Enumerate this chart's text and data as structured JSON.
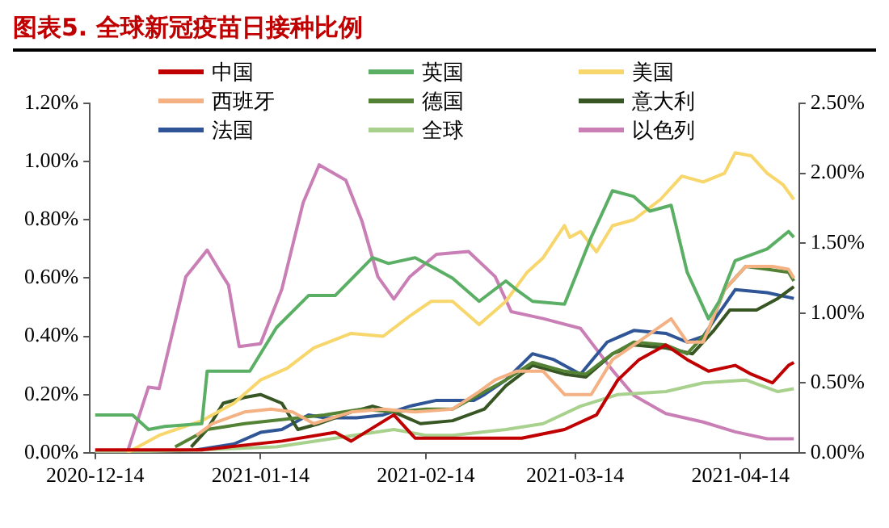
{
  "chart_data": {
    "type": "line",
    "title": "图表5.  全球新冠疫苗日接种比例",
    "legend": "top",
    "grid": false,
    "xlim": [
      "2020-12-13",
      "2021-04-25"
    ],
    "xticks": [
      "2020-12-14",
      "2021-01-14",
      "2021-02-14",
      "2021-03-14",
      "2021-04-14"
    ],
    "ylim": [
      0,
      1.2
    ],
    "yticks": [
      {
        "value": 0,
        "label": "0.00%"
      },
      {
        "value": 0.2,
        "label": "0.20%"
      },
      {
        "value": 0.4,
        "label": "0.40%"
      },
      {
        "value": 0.6,
        "label": "0.60%"
      },
      {
        "value": 0.8,
        "label": "0.80%"
      },
      {
        "value": 1.0,
        "label": "1.00%"
      },
      {
        "value": 1.2,
        "label": "1.20%"
      }
    ],
    "y2lim": [
      0,
      2.5
    ],
    "y2ticks": [
      {
        "value": 0,
        "label": "0.00%"
      },
      {
        "value": 0.5,
        "label": "0.50%"
      },
      {
        "value": 1.0,
        "label": "1.00%"
      },
      {
        "value": 1.5,
        "label": "1.50%"
      },
      {
        "value": 2.0,
        "label": "2.00%"
      },
      {
        "value": 2.5,
        "label": "2.50%"
      }
    ],
    "series": [
      {
        "name": "中国",
        "color": "#c00000",
        "x": [
          "2020-12-14",
          "2021-01-03",
          "2021-01-18",
          "2021-01-28",
          "2021-01-31",
          "2021-02-08",
          "2021-02-12",
          "2021-03-04",
          "2021-03-12",
          "2021-03-18",
          "2021-03-22",
          "2021-03-26",
          "2021-03-31",
          "2021-04-04",
          "2021-04-08",
          "2021-04-13",
          "2021-04-16",
          "2021-04-20",
          "2021-04-23",
          "2021-04-24"
        ],
        "values": [
          0.01,
          0.01,
          0.04,
          0.07,
          0.04,
          0.13,
          0.05,
          0.05,
          0.08,
          0.13,
          0.25,
          0.32,
          0.37,
          0.32,
          0.28,
          0.3,
          0.27,
          0.24,
          0.3,
          0.31
        ]
      },
      {
        "name": "英国",
        "color": "#5aaf65",
        "x": [
          "2020-12-14",
          "2020-12-21",
          "2020-12-24",
          "2020-12-27",
          "2021-01-03",
          "2021-01-04",
          "2021-01-12",
          "2021-01-17",
          "2021-01-23",
          "2021-01-28",
          "2021-02-04",
          "2021-02-07",
          "2021-02-12",
          "2021-02-16",
          "2021-02-19",
          "2021-02-24",
          "2021-03-01",
          "2021-03-03",
          "2021-03-06",
          "2021-03-12",
          "2021-03-17",
          "2021-03-21",
          "2021-03-25",
          "2021-03-28",
          "2021-04-01",
          "2021-04-04",
          "2021-04-08",
          "2021-04-10",
          "2021-04-13",
          "2021-04-19",
          "2021-04-23",
          "2021-04-24"
        ],
        "values": [
          0.13,
          0.13,
          0.08,
          0.09,
          0.1,
          0.28,
          0.28,
          0.43,
          0.54,
          0.54,
          0.67,
          0.65,
          0.67,
          0.63,
          0.6,
          0.52,
          0.59,
          0.56,
          0.52,
          0.51,
          0.74,
          0.9,
          0.88,
          0.83,
          0.85,
          0.62,
          0.46,
          0.52,
          0.66,
          0.7,
          0.76,
          0.74
        ]
      },
      {
        "name": "美国",
        "color": "#f7d66b",
        "x": [
          "2020-12-20",
          "2020-12-26",
          "2021-01-03",
          "2021-01-09",
          "2021-01-14",
          "2021-01-19",
          "2021-01-24",
          "2021-01-31",
          "2021-02-06",
          "2021-02-11",
          "2021-02-15",
          "2021-02-19",
          "2021-02-24",
          "2021-03-01",
          "2021-03-05",
          "2021-03-08",
          "2021-03-12",
          "2021-03-13",
          "2021-03-15",
          "2021-03-18",
          "2021-03-21",
          "2021-03-25",
          "2021-03-30",
          "2021-04-03",
          "2021-04-07",
          "2021-04-11",
          "2021-04-13",
          "2021-04-16",
          "2021-04-19",
          "2021-04-22",
          "2021-04-24"
        ],
        "values": [
          0,
          0.06,
          0.11,
          0.17,
          0.25,
          0.29,
          0.36,
          0.41,
          0.4,
          0.47,
          0.52,
          0.52,
          0.44,
          0.52,
          0.62,
          0.67,
          0.78,
          0.74,
          0.76,
          0.69,
          0.78,
          0.8,
          0.87,
          0.95,
          0.93,
          0.96,
          1.03,
          1.02,
          0.96,
          0.92,
          0.87
        ]
      },
      {
        "name": "西班牙",
        "color": "#f4b183",
        "x": [
          "2021-01-02",
          "2021-01-05",
          "2021-01-11",
          "2021-01-16",
          "2021-01-20",
          "2021-01-24",
          "2021-01-31",
          "2021-02-06",
          "2021-02-12",
          "2021-02-19",
          "2021-02-24",
          "2021-02-27",
          "2021-03-03",
          "2021-03-08",
          "2021-03-12",
          "2021-03-17",
          "2021-03-21",
          "2021-03-25",
          "2021-04-01",
          "2021-04-04",
          "2021-04-07",
          "2021-04-11",
          "2021-04-15",
          "2021-04-20",
          "2021-04-23",
          "2021-04-24"
        ],
        "values": [
          0.06,
          0.1,
          0.14,
          0.15,
          0.14,
          0.1,
          0.14,
          0.15,
          0.14,
          0.15,
          0.21,
          0.25,
          0.28,
          0.28,
          0.2,
          0.2,
          0.32,
          0.37,
          0.46,
          0.38,
          0.38,
          0.56,
          0.64,
          0.64,
          0.63,
          0.6
        ]
      },
      {
        "name": "德国",
        "color": "#548235",
        "x": [
          "2020-12-29",
          "2021-01-04",
          "2021-01-11",
          "2021-01-26",
          "2021-02-02",
          "2021-02-08",
          "2021-02-14",
          "2021-02-19",
          "2021-03-01",
          "2021-03-06",
          "2021-03-12",
          "2021-03-16",
          "2021-03-21",
          "2021-03-25",
          "2021-03-31",
          "2021-04-04",
          "2021-04-08",
          "2021-04-11",
          "2021-04-15",
          "2021-04-19",
          "2021-04-23",
          "2021-04-24"
        ],
        "values": [
          0.02,
          0.08,
          0.1,
          0.13,
          0.15,
          0.14,
          0.15,
          0.15,
          0.25,
          0.31,
          0.28,
          0.27,
          0.34,
          0.38,
          0.37,
          0.34,
          0.42,
          0.56,
          0.64,
          0.63,
          0.62,
          0.59
        ]
      },
      {
        "name": "意大利",
        "color": "#375623",
        "x": [
          "2021-01-01",
          "2021-01-04",
          "2021-01-07",
          "2021-01-11",
          "2021-01-14",
          "2021-01-18",
          "2021-01-21",
          "2021-01-25",
          "2021-01-31",
          "2021-02-04",
          "2021-02-08",
          "2021-02-13",
          "2021-02-19",
          "2021-02-25",
          "2021-03-01",
          "2021-03-06",
          "2021-03-12",
          "2021-03-16",
          "2021-03-21",
          "2021-03-25",
          "2021-03-31",
          "2021-04-05",
          "2021-04-09",
          "2021-04-12",
          "2021-04-17",
          "2021-04-21",
          "2021-04-24"
        ],
        "values": [
          0.02,
          0.08,
          0.17,
          0.19,
          0.2,
          0.17,
          0.08,
          0.1,
          0.14,
          0.16,
          0.14,
          0.1,
          0.11,
          0.15,
          0.23,
          0.3,
          0.27,
          0.26,
          0.34,
          0.37,
          0.36,
          0.34,
          0.42,
          0.49,
          0.49,
          0.53,
          0.57
        ]
      },
      {
        "name": "法国",
        "color": "#2f5597",
        "x": [
          "2021-01-02",
          "2021-01-09",
          "2021-01-14",
          "2021-01-18",
          "2021-01-23",
          "2021-01-26",
          "2021-02-01",
          "2021-02-06",
          "2021-02-11",
          "2021-02-16",
          "2021-02-23",
          "2021-02-25",
          "2021-03-01",
          "2021-03-06",
          "2021-03-10",
          "2021-03-15",
          "2021-03-20",
          "2021-03-25",
          "2021-03-31",
          "2021-04-04",
          "2021-04-07",
          "2021-04-10",
          "2021-04-13",
          "2021-04-19",
          "2021-04-24"
        ],
        "values": [
          0.01,
          0.03,
          0.07,
          0.08,
          0.13,
          0.12,
          0.12,
          0.13,
          0.16,
          0.18,
          0.18,
          0.2,
          0.25,
          0.34,
          0.32,
          0.27,
          0.38,
          0.42,
          0.41,
          0.38,
          0.4,
          0.48,
          0.56,
          0.55,
          0.53
        ]
      },
      {
        "name": "全球",
        "color": "#a9d18e",
        "x": [
          "2020-12-14",
          "2021-01-03",
          "2021-01-17",
          "2021-01-28",
          "2021-02-08",
          "2021-02-14",
          "2021-02-19",
          "2021-03-01",
          "2021-03-08",
          "2021-03-15",
          "2021-03-22",
          "2021-03-31",
          "2021-04-07",
          "2021-04-15",
          "2021-04-21",
          "2021-04-24"
        ],
        "values": [
          0,
          0.01,
          0.02,
          0.05,
          0.08,
          0.06,
          0.06,
          0.08,
          0.1,
          0.16,
          0.2,
          0.21,
          0.24,
          0.25,
          0.21,
          0.22
        ]
      },
      {
        "name": "以色列",
        "color": "#c97fb5",
        "axis": "y2",
        "x": [
          "2020-12-14",
          "2020-12-20",
          "2020-12-24",
          "2020-12-26",
          "2020-12-31",
          "2021-01-04",
          "2021-01-07",
          "2021-01-08",
          "2021-01-10",
          "2021-01-14",
          "2021-01-18",
          "2021-01-22",
          "2021-01-25",
          "2021-01-30",
          "2021-02-02",
          "2021-02-05",
          "2021-02-08",
          "2021-02-11",
          "2021-02-16",
          "2021-02-22",
          "2021-02-27",
          "2021-03-02",
          "2021-03-08",
          "2021-03-15",
          "2021-03-21",
          "2021-03-25",
          "2021-03-31",
          "2021-04-07",
          "2021-04-13",
          "2021-04-19",
          "2021-04-24"
        ],
        "values": [
          0,
          0,
          0.47,
          0.46,
          1.26,
          1.45,
          1.26,
          1.2,
          0.76,
          0.78,
          1.17,
          1.79,
          2.06,
          1.95,
          1.66,
          1.26,
          1.1,
          1.26,
          1.42,
          1.44,
          1.26,
          1.01,
          0.96,
          0.89,
          0.59,
          0.41,
          0.28,
          0.22,
          0.15,
          0.1,
          0.1
        ]
      }
    ]
  }
}
